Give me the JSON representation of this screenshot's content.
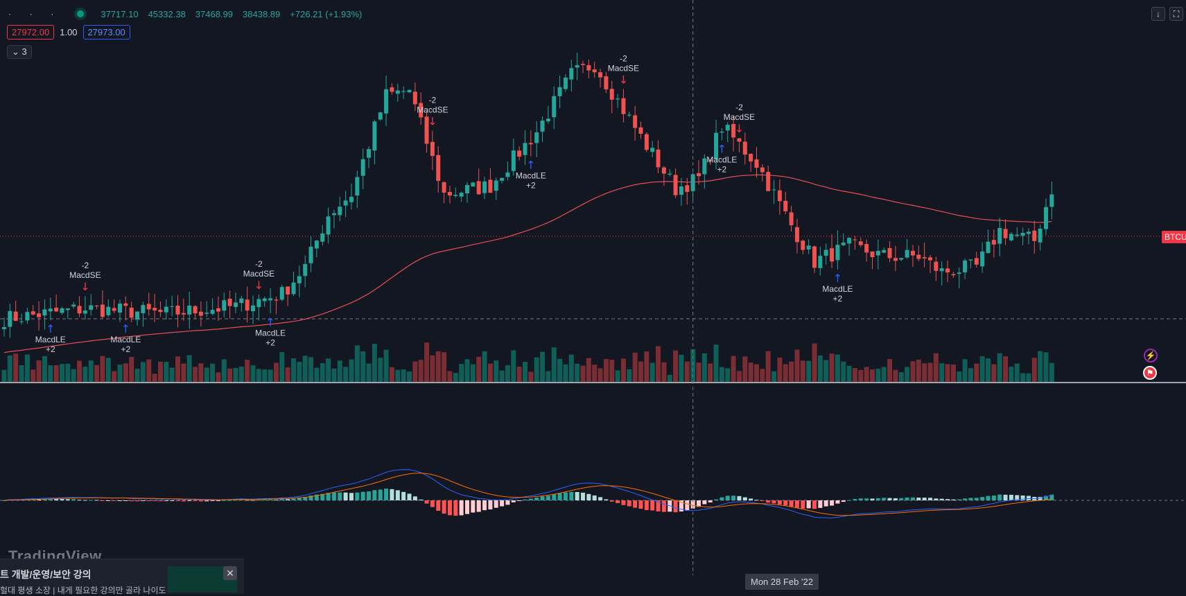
{
  "legend": {
    "values": [
      "37717.10",
      "45332.38",
      "37468.99",
      "38438.89",
      "+726.21 (+1.93%)"
    ]
  },
  "window_buttons": {
    "scroll_down": "↓",
    "fullscreen": "⛶"
  },
  "order": {
    "sell_price": "27972.00",
    "qty": "1.00",
    "buy_price": "27973.00"
  },
  "indicators_toggle": {
    "label": "3"
  },
  "price_tag": "BTCU",
  "crosshair_date": "Mon 28 Feb '22",
  "brand": "TradingView",
  "ad": {
    "title": "트 개발/운영/보안 강의",
    "line2": "헐대 평생 소장 | 내게 필요한 강의만 골라 나이도",
    "close": "✕"
  },
  "icons": {
    "alerts": "lightning-icon",
    "economic_events": "flag-icon"
  },
  "colors": {
    "background": "#131722",
    "up": "#26a69a",
    "down": "#ef5350",
    "ma": "#e84d58",
    "macd": "#2962ff",
    "signal": "#ff6d00",
    "buy_signal": "#2962ff",
    "sell_signal": "#f23645"
  },
  "chart_data": {
    "type": "candlestick",
    "series_summary": {
      "open": 37717.1,
      "high": 45332.38,
      "low": 37468.99,
      "close": 38438.89,
      "change": 726.21,
      "change_pct": 1.93
    },
    "anchors": [
      {
        "i": 0,
        "p": 29
      },
      {
        "i": 14,
        "p": 30
      },
      {
        "i": 28,
        "p": 29.5
      },
      {
        "i": 40,
        "p": 30.2
      },
      {
        "i": 48,
        "p": 31.4
      },
      {
        "i": 52,
        "p": 34
      },
      {
        "i": 56,
        "p": 39
      },
      {
        "i": 60,
        "p": 41
      },
      {
        "i": 66,
        "p": 50.5
      },
      {
        "i": 70,
        "p": 51
      },
      {
        "i": 76,
        "p": 41
      },
      {
        "i": 84,
        "p": 41.8
      },
      {
        "i": 92,
        "p": 47
      },
      {
        "i": 98,
        "p": 52.5
      },
      {
        "i": 102,
        "p": 53.5
      },
      {
        "i": 110,
        "p": 46.5
      },
      {
        "i": 116,
        "p": 41.5
      },
      {
        "i": 120,
        "p": 42.5
      },
      {
        "i": 124,
        "p": 47.5
      },
      {
        "i": 130,
        "p": 44
      },
      {
        "i": 136,
        "p": 38
      },
      {
        "i": 140,
        "p": 34.5
      },
      {
        "i": 146,
        "p": 36
      },
      {
        "i": 152,
        "p": 35
      },
      {
        "i": 158,
        "p": 35
      },
      {
        "i": 162,
        "p": 33.5
      },
      {
        "i": 168,
        "p": 34
      },
      {
        "i": 172,
        "p": 37.5
      },
      {
        "i": 178,
        "p": 36.5
      },
      {
        "i": 181,
        "p": 41.5
      }
    ],
    "candle_count": 182,
    "price_range": [
      26,
      56
    ],
    "signals": [
      {
        "i": 8,
        "type": "buy",
        "label": "MacdLE",
        "qty": "+2"
      },
      {
        "i": 14,
        "type": "sell",
        "label": "MacdSE",
        "qty": "-2"
      },
      {
        "i": 21,
        "type": "buy",
        "label": "MacdLE",
        "qty": "+2"
      },
      {
        "i": 44,
        "type": "sell",
        "label": "MacdSE",
        "qty": "-2"
      },
      {
        "i": 46,
        "type": "buy",
        "label": "MacdLE",
        "qty": "+2"
      },
      {
        "i": 74,
        "type": "sell",
        "label": "MacdSE",
        "qty": "-2"
      },
      {
        "i": 91,
        "type": "buy",
        "label": "MacdLE",
        "qty": "+2"
      },
      {
        "i": 107,
        "type": "sell",
        "label": "MacdSE",
        "qty": "-2"
      },
      {
        "i": 124,
        "type": "buy",
        "label": "MacdLE",
        "qty": "+2"
      },
      {
        "i": 127,
        "type": "sell",
        "label": "MacdSE",
        "qty": "-2"
      },
      {
        "i": 144,
        "type": "buy",
        "label": "MacdLE",
        "qty": "+2"
      }
    ],
    "crosshair_index": 119
  }
}
